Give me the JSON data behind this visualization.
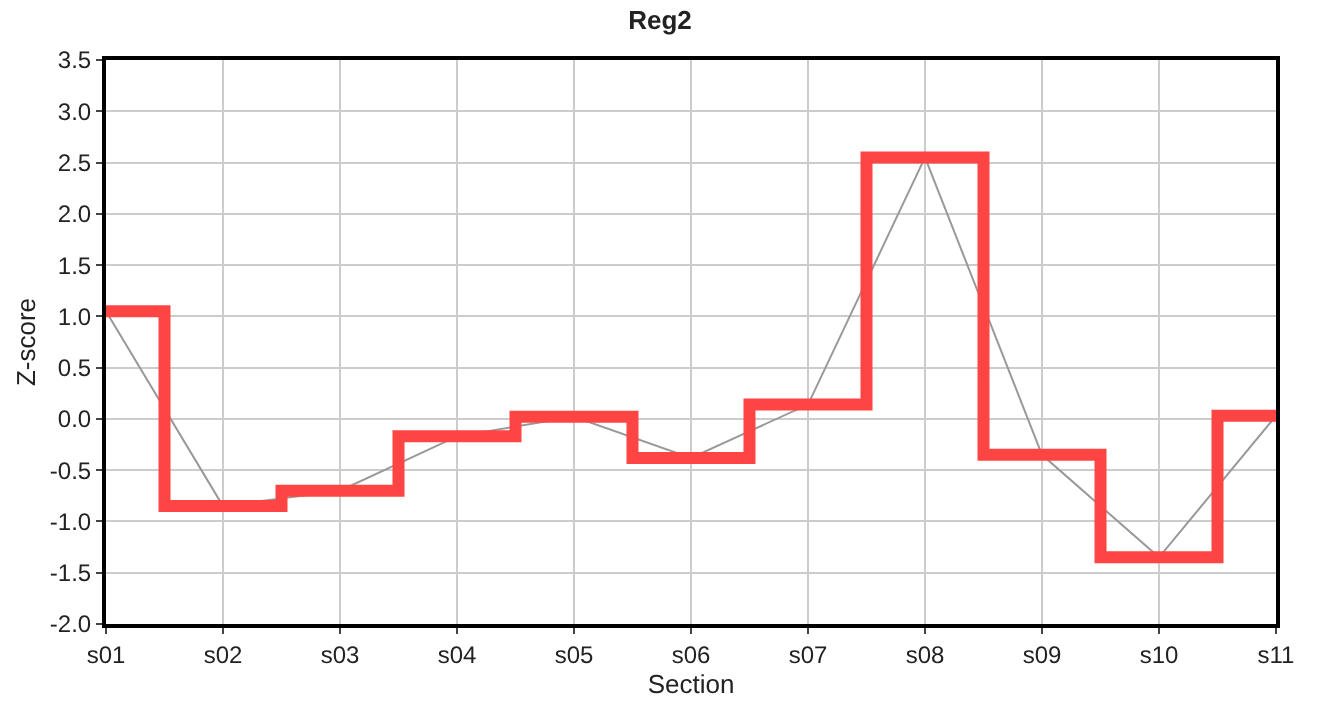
{
  "chart_data": {
    "type": "step",
    "title": "Reg2",
    "xlabel": "Section",
    "ylabel": "Z-score",
    "categories": [
      "s01",
      "s02",
      "s03",
      "s04",
      "s05",
      "s06",
      "s07",
      "s08",
      "s09",
      "s10",
      "s11"
    ],
    "series": [
      {
        "type": "line",
        "color": "#999999",
        "values": [
          1.05,
          -0.85,
          -0.7,
          -0.17,
          0.02,
          -0.38,
          0.14,
          2.55,
          -0.35,
          -1.35,
          0.03
        ]
      },
      {
        "color": "#ff4444",
        "values": [
          1.05,
          -0.85,
          -0.7,
          -0.17,
          0.02,
          -0.38,
          0.14,
          2.55,
          -0.35,
          -1.35,
          0.03
        ]
      }
    ],
    "ylim": [
      -2.0,
      3.5
    ],
    "yticks": [
      {
        "value": -2.0,
        "label": "-2.0"
      },
      {
        "value": -1.5,
        "label": "-1.5"
      },
      {
        "value": -1.0,
        "label": "-1.0"
      },
      {
        "value": -0.5,
        "label": "-0.5"
      },
      {
        "value": 0.0,
        "label": "0.0"
      },
      {
        "value": 0.5,
        "label": "0.5"
      },
      {
        "value": 1.0,
        "label": "1.0"
      },
      {
        "value": 1.5,
        "label": "1.5"
      },
      {
        "value": 2.0,
        "label": "2.0"
      },
      {
        "value": 2.5,
        "label": "2.5"
      },
      {
        "value": 3.0,
        "label": "3.0"
      },
      {
        "value": 3.5,
        "label": "3.5"
      }
    ],
    "grid": true,
    "legend": false,
    "marker": "none"
  }
}
